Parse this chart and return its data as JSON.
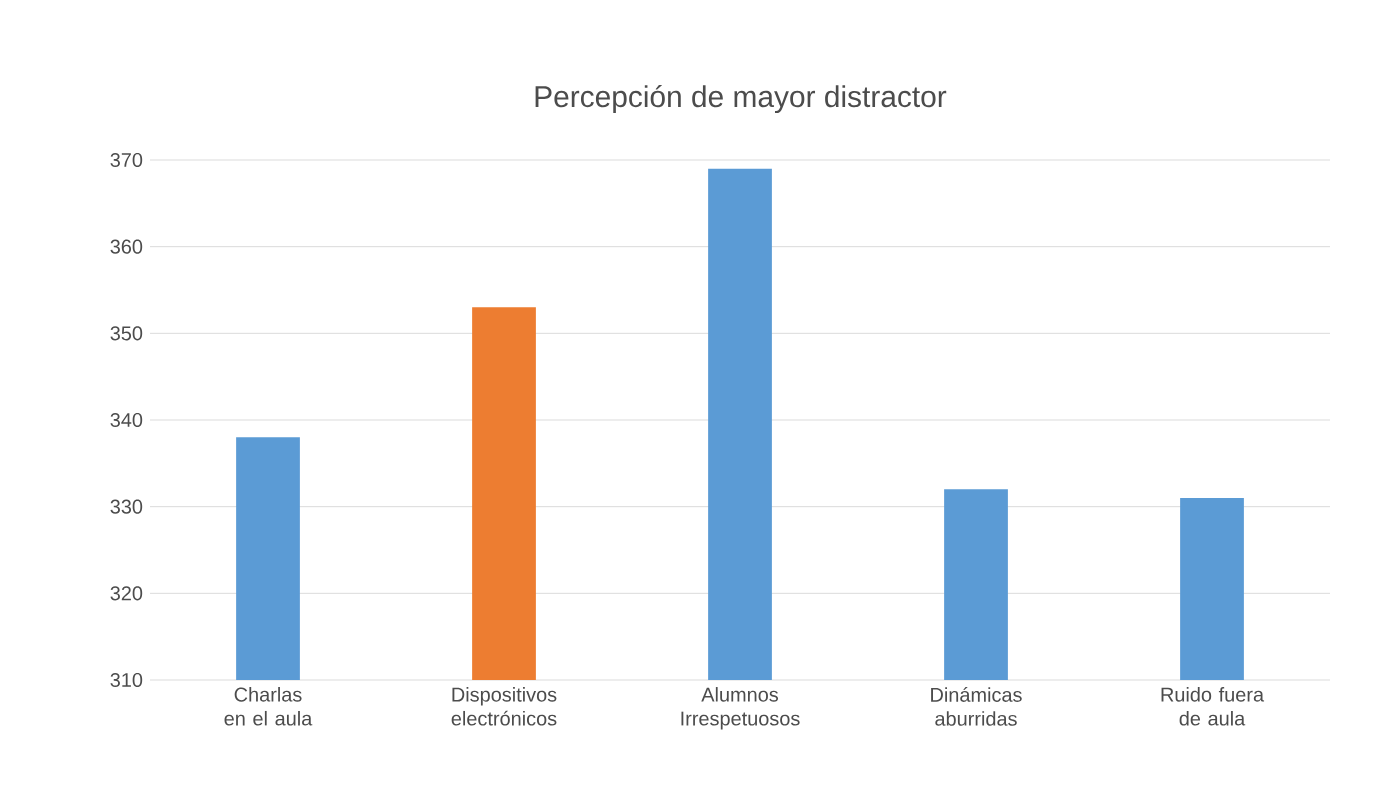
{
  "chart_data": {
    "type": "bar",
    "title": "Percepción de mayor distractor",
    "categories": [
      "Charlas en el aula",
      "Dispositivos electrónicos",
      "Alumnos Irrespetuosos",
      "Dinámicas aburridas",
      "Ruido fuera de aula"
    ],
    "values": [
      338,
      353,
      369,
      332,
      331
    ],
    "colors": [
      "#5b9bd5",
      "#ed7d31",
      "#5b9bd5",
      "#5b9bd5",
      "#5b9bd5"
    ],
    "ylim": [
      310,
      370
    ],
    "yticks": [
      310,
      320,
      330,
      340,
      350,
      360,
      370
    ],
    "grid": "y"
  }
}
